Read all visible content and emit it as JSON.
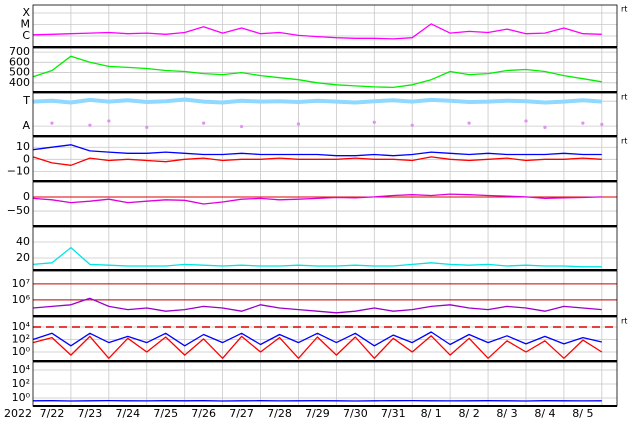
{
  "time": {
    "x": [
      0,
      0.5,
      1,
      1.5,
      2,
      2.5,
      3,
      3.5,
      4,
      4.5,
      5,
      5.5,
      6,
      6.5,
      7,
      7.5,
      8,
      8.5,
      9,
      9.5,
      10,
      10.5,
      11,
      11.5,
      12,
      12.5,
      13,
      13.5,
      14,
      14.5,
      15
    ],
    "xlim": [
      0,
      15.4
    ],
    "year": "2022",
    "xticks": [
      {
        "value": 0.5,
        "label": "7/22"
      },
      {
        "value": 1.5,
        "label": "7/23"
      },
      {
        "value": 2.5,
        "label": "7/24"
      },
      {
        "value": 3.5,
        "label": "7/25"
      },
      {
        "value": 4.5,
        "label": "7/26"
      },
      {
        "value": 5.5,
        "label": "7/27"
      },
      {
        "value": 6.5,
        "label": "7/28"
      },
      {
        "value": 7.5,
        "label": "7/29"
      },
      {
        "value": 8.5,
        "label": "7/30"
      },
      {
        "value": 9.5,
        "label": "7/31"
      },
      {
        "value": 10.5,
        "label": "8/ 1"
      },
      {
        "value": 11.5,
        "label": "8/ 2"
      },
      {
        "value": 12.5,
        "label": "8/ 3"
      },
      {
        "value": 13.5,
        "label": "8/ 4"
      },
      {
        "value": 14.5,
        "label": "8/ 5"
      }
    ],
    "xgrid": [
      1,
      2,
      3,
      4,
      5,
      6,
      7,
      8,
      9,
      10,
      11,
      12,
      13,
      14,
      15
    ]
  },
  "chart_data": [
    {
      "type": "line",
      "note": "rt",
      "ylim": [
        -6.96,
        -3.3
      ],
      "yticks": [
        {
          "value": -4,
          "label": "X"
        },
        {
          "value": -5,
          "label": "M"
        },
        {
          "value": -6,
          "label": "C"
        }
      ],
      "series": [
        {
          "color": "#ff00ff",
          "values": [
            -5.9,
            -5.85,
            -5.8,
            -5.75,
            -5.7,
            -5.8,
            -5.75,
            -5.85,
            -5.7,
            -5.2,
            -5.75,
            -5.3,
            -5.8,
            -5.7,
            -5.95,
            -6.05,
            -6.15,
            -6.2,
            -6.2,
            -6.25,
            -6.15,
            -4.95,
            -5.75,
            -5.6,
            -5.7,
            -5.4,
            -5.8,
            -5.75,
            -5.3,
            -5.8,
            -5.85
          ]
        }
      ]
    },
    {
      "type": "line",
      "ylim": [
        310,
        740
      ],
      "yticks": [
        400,
        500,
        600,
        700
      ],
      "series": [
        {
          "color": "#00ee00",
          "values": [
            460,
            520,
            660,
            600,
            560,
            550,
            540,
            520,
            510,
            490,
            480,
            500,
            470,
            450,
            430,
            400,
            380,
            370,
            360,
            355,
            380,
            430,
            510,
            480,
            490,
            520,
            530,
            510,
            470,
            440,
            410
          ]
        }
      ]
    },
    {
      "type": "line",
      "note": "rt",
      "ylim": [
        0,
        1
      ],
      "yticks": [
        {
          "value": 0.81,
          "label": "T"
        },
        {
          "value": 0.23,
          "label": "A"
        }
      ],
      "series": [
        {
          "color": "#8fd8ff",
          "values": [
            0.8,
            0.82,
            0.78,
            0.84,
            0.8,
            0.83,
            0.79,
            0.81,
            0.85,
            0.8,
            0.78,
            0.82,
            0.8,
            0.81,
            0.79,
            0.82,
            0.8,
            0.78,
            0.81,
            0.83,
            0.8,
            0.84,
            0.82,
            0.79,
            0.8,
            0.82,
            0.81,
            0.78,
            0.8,
            0.83,
            0.8
          ]
        },
        {
          "color": "#e090f0",
          "mode": "markers",
          "values": [
            null,
            0.3,
            null,
            0.25,
            0.35,
            null,
            0.2,
            null,
            null,
            0.3,
            null,
            0.22,
            null,
            null,
            0.28,
            null,
            null,
            null,
            0.32,
            null,
            0.25,
            null,
            null,
            0.3,
            null,
            null,
            0.35,
            0.2,
            null,
            0.3,
            0.27
          ]
        }
      ]
    },
    {
      "type": "line",
      "note": "rt",
      "ylim": [
        -18,
        18.5
      ],
      "yticks": [
        10,
        0,
        {
          "value": -10,
          "label": "−10"
        }
      ],
      "series": [
        {
          "color": "#0000ff",
          "values": [
            8,
            10,
            12,
            7,
            6,
            5,
            5,
            6,
            5,
            4,
            4,
            5,
            4,
            4,
            4,
            4,
            3,
            3,
            4,
            3,
            4,
            6,
            5,
            4,
            5,
            4,
            4,
            4,
            5,
            4,
            4
          ]
        },
        {
          "color": "#ff0000",
          "values": [
            2,
            -3,
            -5,
            1,
            -1,
            0,
            -1,
            -2,
            0,
            1,
            -1,
            0,
            0,
            1,
            0,
            0,
            0,
            1,
            0,
            0,
            -1,
            2,
            0,
            -1,
            0,
            1,
            -1,
            0,
            0,
            1,
            0
          ]
        }
      ]
    },
    {
      "type": "line",
      "ylim": [
        -103,
        53
      ],
      "yticks": [
        0,
        {
          "value": -50,
          "label": "−50"
        }
      ],
      "reference_lines": [
        {
          "value": 0,
          "color": "#dd0000"
        }
      ],
      "series": [
        {
          "color": "#dd00dd",
          "values": [
            -5,
            -10,
            -20,
            -15,
            -8,
            -20,
            -15,
            -10,
            -12,
            -25,
            -18,
            -8,
            -5,
            -10,
            -8,
            -5,
            -2,
            -3,
            0,
            5,
            8,
            5,
            10,
            8,
            5,
            3,
            0,
            -5,
            -3,
            -2,
            0
          ]
        }
      ]
    },
    {
      "type": "line",
      "ylim": [
        5,
        58.75
      ],
      "yticks": [
        40,
        20
      ],
      "series": [
        {
          "color": "#00e5e5",
          "values": [
            12,
            14,
            33,
            12,
            11,
            10,
            10,
            10,
            12,
            11,
            10,
            11,
            10,
            10,
            11,
            10,
            10,
            11,
            10,
            10,
            12,
            14,
            12,
            11,
            12,
            10,
            11,
            10,
            10,
            9,
            9
          ]
        }
      ]
    },
    {
      "type": "line",
      "ylim": [
        5,
        7.8
      ],
      "yticks": [
        {
          "value": 7,
          "label": "10⁷"
        },
        {
          "value": 6,
          "label": "10⁶"
        }
      ],
      "reference_lines": [
        {
          "value": 7,
          "color": "#cc0000"
        },
        {
          "value": 6,
          "color": "#cc0000"
        }
      ],
      "series": [
        {
          "color": "#9900cc",
          "values": [
            5.5,
            5.6,
            5.7,
            6.1,
            5.6,
            5.4,
            5.5,
            5.3,
            5.4,
            5.6,
            5.5,
            5.3,
            5.7,
            5.5,
            5.4,
            5.3,
            5.2,
            5.3,
            5.5,
            5.3,
            5.4,
            5.6,
            5.7,
            5.5,
            5.4,
            5.6,
            5.5,
            5.3,
            5.6,
            5.5,
            5.4
          ]
        }
      ]
    },
    {
      "type": "line",
      "note": "rt",
      "ylim": [
        -1.44,
        5.6
      ],
      "yticks": [
        {
          "value": 4,
          "label": "10⁴"
        },
        {
          "value": 2,
          "label": "10²"
        },
        {
          "value": 0,
          "label": "10⁰"
        }
      ],
      "reference_lines": [
        {
          "value": 4,
          "color": "#dd0000",
          "dash": true
        }
      ],
      "series": [
        {
          "color": "#0000ff",
          "values": [
            2,
            3,
            1,
            3,
            1.5,
            2.5,
            1.5,
            3,
            1,
            2.8,
            1.5,
            3,
            1.2,
            2.8,
            1.5,
            3,
            1.5,
            3,
            1,
            2.7,
            1.5,
            3.2,
            1.2,
            2.8,
            1.5,
            2.6,
            1.3,
            2.5,
            1.3,
            2.3,
            1.6
          ]
        },
        {
          "color": "#ff0000",
          "values": [
            1.5,
            2.3,
            -0.5,
            2.5,
            -1,
            2.2,
            0,
            2.4,
            -0.5,
            2.1,
            -1,
            2.5,
            0,
            2.3,
            -1,
            2.4,
            -0.5,
            2.4,
            -1,
            2.2,
            0,
            2.6,
            -0.5,
            2.2,
            -1,
            1.8,
            0,
            1.8,
            -1,
            1.9,
            0
          ]
        }
      ]
    },
    {
      "type": "line",
      "ylim": [
        -1.14,
        5.14
      ],
      "yticks": [
        {
          "value": 4,
          "label": "10⁴"
        },
        {
          "value": 2,
          "label": "10²"
        },
        {
          "value": 0,
          "label": "10⁰"
        }
      ],
      "series": [
        {
          "color": "#0000ff",
          "values": [
            -0.4,
            -0.38,
            -0.42,
            -0.4,
            -0.37,
            -0.4,
            -0.41,
            -0.39,
            -0.4,
            -0.38,
            -0.42,
            -0.4,
            -0.39,
            -0.41,
            -0.4,
            -0.38,
            -0.4,
            -0.42,
            -0.4,
            -0.39,
            -0.37,
            -0.4,
            -0.41,
            -0.4,
            -0.38,
            -0.4,
            -0.42,
            -0.39,
            -0.4,
            -0.41,
            -0.4
          ]
        }
      ]
    }
  ]
}
